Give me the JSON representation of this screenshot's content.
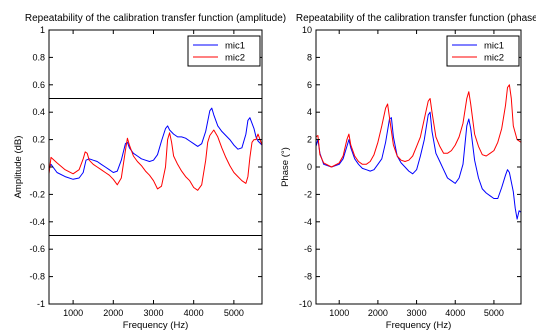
{
  "chart_data": [
    {
      "type": "line",
      "title": "Repeatability of the calibration transfer function (amplitude)",
      "xlabel": "Frequency (Hz)",
      "ylabel": "Amplitude (dB)",
      "xlim": [
        400,
        5700
      ],
      "ylim": [
        -1,
        1
      ],
      "xticks": [
        1000,
        2000,
        3000,
        4000,
        5000
      ],
      "yticks": [
        -1,
        -0.8,
        -0.6,
        -0.4,
        -0.2,
        0,
        0.2,
        0.4,
        0.6,
        0.8,
        1
      ],
      "ytick_labels": [
        "-1",
        "-0.8",
        "-0.6",
        "-0.4",
        "-0.2",
        "0",
        "0.2",
        "0.4",
        "0.6",
        "0.8",
        "1"
      ],
      "legend": {
        "position": "top-right",
        "entries": [
          "mic1",
          "mic2"
        ]
      },
      "reference_lines": [
        {
          "y": 0.5,
          "color": "#000000"
        },
        {
          "y": -0.5,
          "color": "#000000"
        }
      ],
      "series": [
        {
          "name": "mic1",
          "color": "#0000ff",
          "x": [
            400,
            450,
            600,
            800,
            1000,
            1150,
            1250,
            1320,
            1400,
            1500,
            1600,
            1700,
            1800,
            1900,
            2000,
            2100,
            2200,
            2300,
            2350,
            2400,
            2500,
            2600,
            2700,
            2800,
            2900,
            3000,
            3100,
            3200,
            3300,
            3350,
            3400,
            3500,
            3600,
            3700,
            3800,
            3900,
            4000,
            4100,
            4200,
            4300,
            4400,
            4450,
            4500,
            4600,
            4700,
            4800,
            4900,
            5000,
            5100,
            5200,
            5300,
            5350,
            5400,
            5500,
            5550,
            5600,
            5700
          ],
          "y": [
            -0.01,
            0.02,
            -0.04,
            -0.07,
            -0.09,
            -0.08,
            -0.04,
            0.05,
            0.06,
            0.05,
            0.04,
            0.02,
            0.0,
            -0.02,
            -0.04,
            -0.03,
            0.05,
            0.17,
            0.18,
            0.14,
            0.1,
            0.08,
            0.06,
            0.05,
            0.04,
            0.05,
            0.09,
            0.19,
            0.28,
            0.3,
            0.27,
            0.24,
            0.22,
            0.22,
            0.21,
            0.19,
            0.17,
            0.15,
            0.17,
            0.26,
            0.41,
            0.43,
            0.38,
            0.3,
            0.26,
            0.23,
            0.2,
            0.16,
            0.13,
            0.14,
            0.24,
            0.34,
            0.36,
            0.28,
            0.22,
            0.19,
            0.16
          ]
        },
        {
          "name": "mic2",
          "color": "#ff0000",
          "x": [
            400,
            450,
            600,
            800,
            1000,
            1150,
            1250,
            1300,
            1350,
            1400,
            1500,
            1600,
            1700,
            1800,
            1900,
            2000,
            2100,
            2200,
            2300,
            2350,
            2400,
            2500,
            2600,
            2700,
            2800,
            2900,
            3000,
            3100,
            3200,
            3300,
            3350,
            3400,
            3450,
            3500,
            3600,
            3700,
            3800,
            3900,
            4000,
            4100,
            4200,
            4300,
            4350,
            4400,
            4500,
            4600,
            4700,
            4800,
            4900,
            5000,
            5100,
            5200,
            5300,
            5350,
            5400,
            5450,
            5500,
            5550,
            5600,
            5700
          ],
          "y": [
            -0.05,
            0.07,
            0.03,
            -0.02,
            -0.05,
            -0.02,
            0.06,
            0.11,
            0.1,
            0.05,
            0.02,
            0.0,
            -0.02,
            -0.04,
            -0.06,
            -0.09,
            -0.13,
            -0.08,
            0.12,
            0.21,
            0.16,
            0.08,
            0.04,
            0.01,
            -0.03,
            -0.06,
            -0.1,
            -0.16,
            -0.14,
            0.0,
            0.2,
            0.25,
            0.18,
            0.08,
            0.02,
            -0.03,
            -0.07,
            -0.1,
            -0.15,
            -0.17,
            -0.13,
            0.05,
            0.18,
            0.23,
            0.27,
            0.22,
            0.14,
            0.07,
            0.01,
            -0.04,
            -0.07,
            -0.1,
            -0.12,
            -0.07,
            0.07,
            0.18,
            0.2,
            0.2,
            0.24,
            0.16
          ]
        }
      ]
    },
    {
      "type": "line",
      "title": "Repeatability of the calibration transfer function (phase)",
      "xlabel": "Frequency (Hz)",
      "ylabel": "Phase (°)",
      "xlim": [
        400,
        5700
      ],
      "ylim": [
        -10,
        10
      ],
      "xticks": [
        1000,
        2000,
        3000,
        4000,
        5000
      ],
      "yticks": [
        -10,
        -8,
        -6,
        -4,
        -2,
        0,
        2,
        4,
        6,
        8,
        10
      ],
      "ytick_labels": [
        "-10",
        "-8",
        "-6",
        "-4",
        "-2",
        "0",
        "2",
        "4",
        "6",
        "8",
        "10"
      ],
      "legend": {
        "position": "top-right",
        "entries": [
          "mic1",
          "mic2"
        ]
      },
      "series": [
        {
          "name": "mic1",
          "color": "#0000ff",
          "x": [
            400,
            450,
            500,
            600,
            800,
            1000,
            1100,
            1200,
            1250,
            1300,
            1400,
            1500,
            1600,
            1700,
            1800,
            1900,
            2000,
            2100,
            2200,
            2300,
            2350,
            2400,
            2500,
            2600,
            2700,
            2800,
            2900,
            3000,
            3100,
            3200,
            3300,
            3350,
            3400,
            3500,
            3600,
            3700,
            3800,
            3900,
            4000,
            4100,
            4200,
            4300,
            4350,
            4400,
            4500,
            4600,
            4700,
            4800,
            4900,
            5000,
            5100,
            5200,
            5300,
            5350,
            5400,
            5500,
            5550,
            5600,
            5650,
            5700
          ],
          "y": [
            1.5,
            2.0,
            1.0,
            0.2,
            0.0,
            0.2,
            0.6,
            1.5,
            2.0,
            1.4,
            0.6,
            0.2,
            -0.1,
            -0.2,
            -0.3,
            -0.2,
            0.2,
            0.6,
            1.8,
            3.5,
            3.6,
            2.2,
            0.8,
            0.3,
            0.0,
            -0.3,
            -0.5,
            -0.2,
            0.8,
            2.0,
            3.8,
            4.0,
            2.6,
            1.0,
            0.4,
            -0.2,
            -0.8,
            -1.0,
            -1.2,
            -0.8,
            0.2,
            3.0,
            3.5,
            2.8,
            0.5,
            -0.8,
            -1.6,
            -1.9,
            -2.1,
            -2.3,
            -2.3,
            -1.5,
            -0.6,
            -0.2,
            -0.4,
            -1.8,
            -3.0,
            -3.8,
            -3.2,
            -3.3
          ]
        },
        {
          "name": "mic2",
          "color": "#ff0000",
          "x": [
            400,
            450,
            500,
            600,
            800,
            1000,
            1100,
            1200,
            1250,
            1300,
            1400,
            1500,
            1600,
            1700,
            1800,
            1900,
            2000,
            2100,
            2200,
            2250,
            2300,
            2400,
            2500,
            2600,
            2700,
            2800,
            2900,
            3000,
            3100,
            3200,
            3300,
            3350,
            3400,
            3500,
            3600,
            3700,
            3800,
            3900,
            4000,
            4100,
            4200,
            4300,
            4350,
            4400,
            4500,
            4600,
            4700,
            4800,
            4900,
            5000,
            5100,
            5200,
            5300,
            5350,
            5400,
            5450,
            5500,
            5600,
            5700
          ],
          "y": [
            2.2,
            2.3,
            0.9,
            0.3,
            0.0,
            0.3,
            0.8,
            2.0,
            2.4,
            1.6,
            0.8,
            0.4,
            0.2,
            0.2,
            0.4,
            0.9,
            1.8,
            3.0,
            4.3,
            4.6,
            3.6,
            1.6,
            0.8,
            0.5,
            0.4,
            0.5,
            0.8,
            1.5,
            2.2,
            3.5,
            4.8,
            5.0,
            4.0,
            2.2,
            1.5,
            1.0,
            1.0,
            1.2,
            1.6,
            2.2,
            3.2,
            5.0,
            5.5,
            4.6,
            2.4,
            1.5,
            0.9,
            0.8,
            1.0,
            1.2,
            1.8,
            2.8,
            4.5,
            5.8,
            6.0,
            5.0,
            3.0,
            2.0,
            1.8
          ]
        }
      ]
    }
  ]
}
